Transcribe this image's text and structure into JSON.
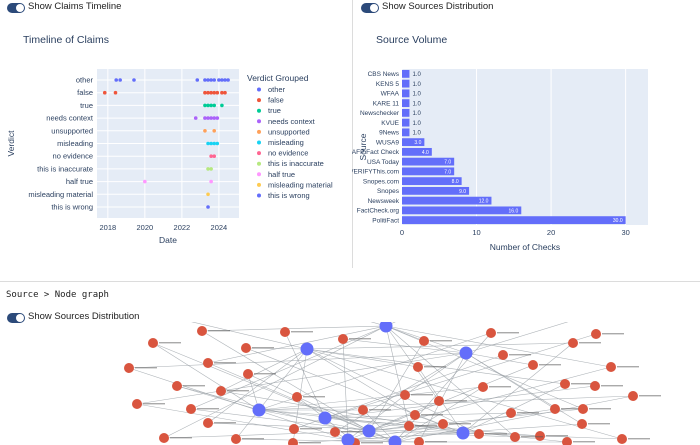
{
  "left_panel": {
    "toggle_label": "Show Claims Timeline"
  },
  "right_panel": {
    "toggle_label": "Show Sources Distribution"
  },
  "breadcrumb": "Source > Node graph",
  "node_section": {
    "toggle_label": "Show Sources Distribution"
  },
  "colors": {
    "toggle": "#2c4a7a",
    "plot_bg": "#e5ecf6",
    "bar": "#636efa",
    "node_red": "#d9553f",
    "node_blue": "#636efa"
  },
  "chart_data": [
    {
      "type": "scatter",
      "title": "Timeline of Claims",
      "xlabel": "Date",
      "ylabel": "Verdict",
      "x_ticks": [
        "2018",
        "2020",
        "2022",
        "2024"
      ],
      "legend_title": "Verdict Grouped",
      "legend_position": "right",
      "grid": true,
      "categories": [
        "other",
        "false",
        "true",
        "needs context",
        "unsupported",
        "misleading",
        "no evidence",
        "this is inaccurate",
        "half true",
        "misleading material",
        "this is wrong"
      ],
      "series": [
        {
          "name": "other",
          "color": "#636efa",
          "x": [
            "2018-06-15",
            "2018-09-01",
            "2019-06-01",
            "2022-11-01",
            "2023-04-01",
            "2023-06-01",
            "2023-08-01",
            "2023-10-01",
            "2024-01-01",
            "2024-03-01",
            "2024-05-01",
            "2024-07-01"
          ]
        },
        {
          "name": "false",
          "color": "#ef553b",
          "x": [
            "2017-11-01",
            "2018-06-01",
            "2023-04-01",
            "2023-06-01",
            "2023-08-01",
            "2023-10-01",
            "2023-12-01",
            "2024-03-01",
            "2024-05-01"
          ]
        },
        {
          "name": "true",
          "color": "#00cc96",
          "x": [
            "2023-04-01",
            "2023-06-01",
            "2023-08-01",
            "2023-10-01",
            "2024-03-01"
          ]
        },
        {
          "name": "needs context",
          "color": "#ab63fa",
          "x": [
            "2022-10-01",
            "2023-04-01",
            "2023-06-01",
            "2023-08-01",
            "2023-10-01",
            "2023-12-01"
          ]
        },
        {
          "name": "unsupported",
          "color": "#ffa15a",
          "x": [
            "2023-04-01",
            "2023-10-01"
          ]
        },
        {
          "name": "misleading",
          "color": "#19d3f3",
          "x": [
            "2023-06-01",
            "2023-08-01",
            "2023-10-01",
            "2023-12-01"
          ]
        },
        {
          "name": "no evidence",
          "color": "#ff6692",
          "x": [
            "2023-08-01",
            "2023-10-01"
          ]
        },
        {
          "name": "this is inaccurate",
          "color": "#b6e880",
          "x": [
            "2023-06-01",
            "2023-08-01"
          ]
        },
        {
          "name": "half true",
          "color": "#ff97ff",
          "x": [
            "2020-01-01",
            "2023-08-01"
          ]
        },
        {
          "name": "misleading material",
          "color": "#fecb52",
          "x": [
            "2023-06-01"
          ]
        },
        {
          "name": "this is wrong",
          "color": "#636efa",
          "x": [
            "2023-06-01"
          ]
        }
      ]
    },
    {
      "type": "bar",
      "orientation": "horizontal",
      "title": "Source Volume",
      "xlabel": "Number of Checks",
      "ylabel": "Source",
      "xlim": [
        0,
        33
      ],
      "x_ticks": [
        "0",
        "10",
        "20",
        "30"
      ],
      "grid": true,
      "categories": [
        "CBS News",
        "KENS 5",
        "WFAA",
        "KARE 11",
        "Newschecker",
        "KVUE",
        "9News",
        "WUSA9",
        "AFP Fact Check",
        "USA Today",
        "VERIFYThis.com",
        "Snopes.com",
        "Snopes",
        "Newsweek",
        "FactCheck.org",
        "PolitiFact"
      ],
      "values": [
        1,
        1,
        1,
        1,
        1,
        1,
        1,
        3,
        4,
        7,
        7,
        8,
        9,
        12,
        16,
        30
      ],
      "labels": [
        "1.0",
        "1.0",
        "1.0",
        "1.0",
        "1.0",
        "1.0",
        "1.0",
        "3.0",
        "4.0",
        "7.0",
        "7.0",
        "8.0",
        "9.0",
        "12.0",
        "16.0",
        "30.0"
      ]
    }
  ]
}
